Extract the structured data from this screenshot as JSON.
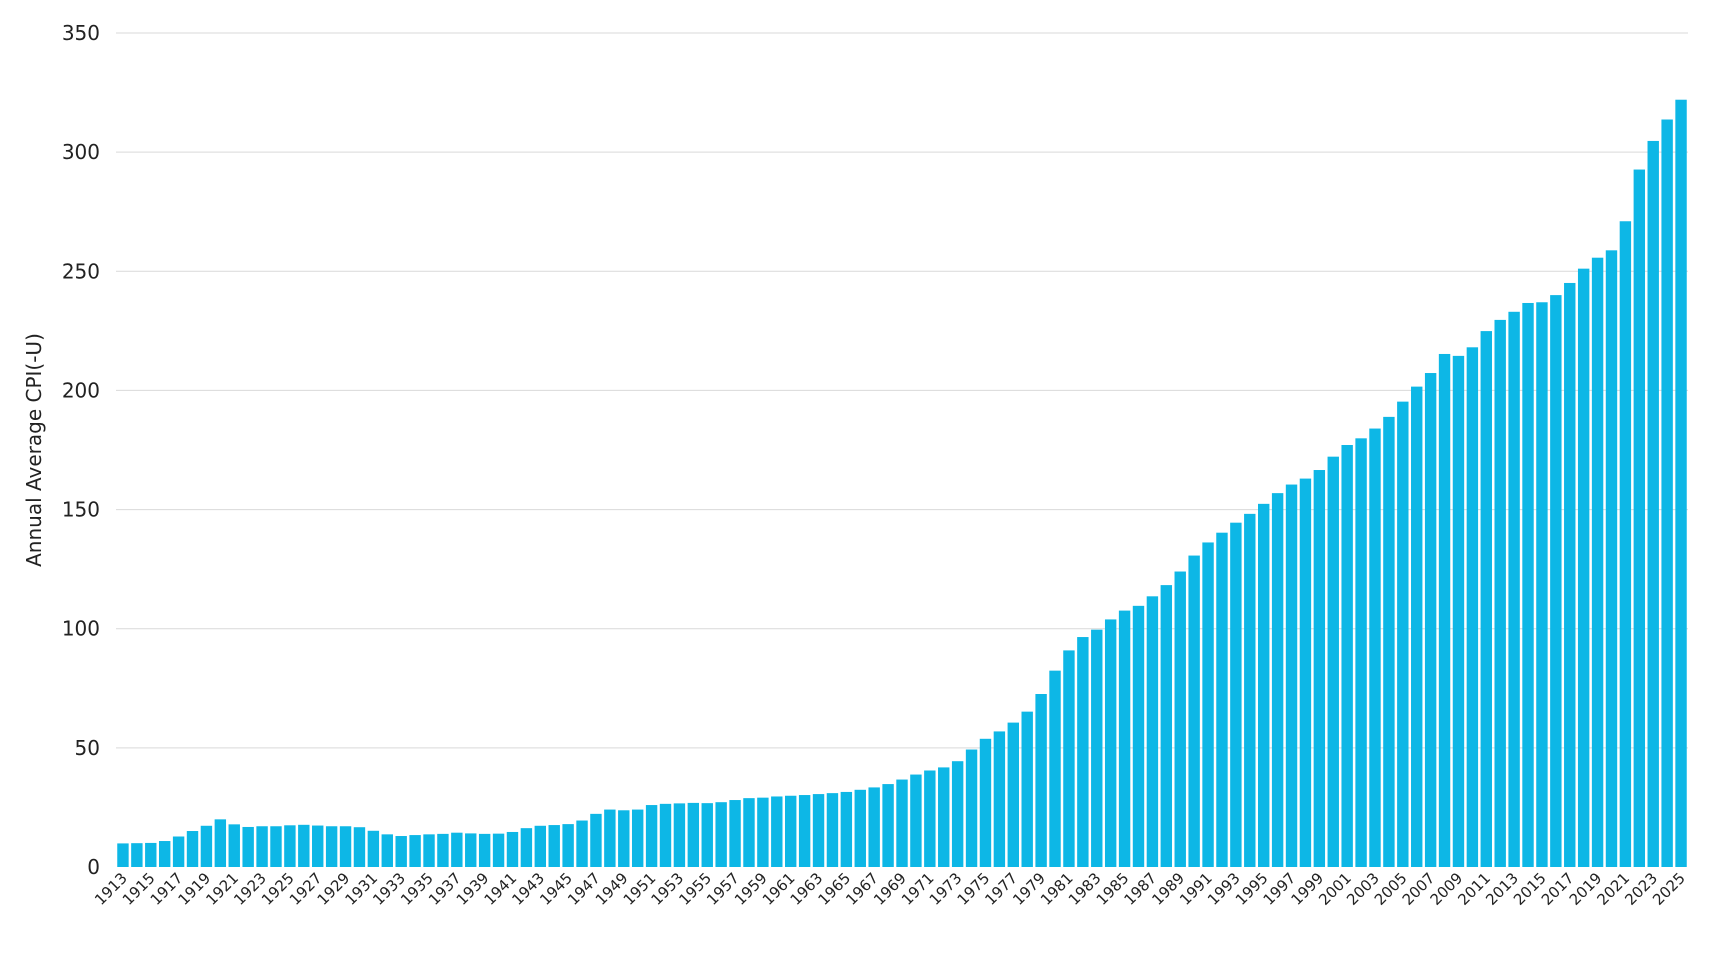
{
  "chart_data": {
    "type": "bar",
    "title": "",
    "xlabel": "",
    "ylabel": "Annual Average CPI(-U)",
    "ylim": [
      0,
      350
    ],
    "yticks": [
      0,
      50,
      100,
      150,
      200,
      250,
      300,
      350
    ],
    "grid": true,
    "bar_color": "#0db7e6",
    "grid_color": "#d9d9d9",
    "categories": [
      "1913",
      "1914",
      "1915",
      "1916",
      "1917",
      "1918",
      "1919",
      "1920",
      "1921",
      "1922",
      "1923",
      "1924",
      "1925",
      "1926",
      "1927",
      "1928",
      "1929",
      "1930",
      "1931",
      "1932",
      "1933",
      "1934",
      "1935",
      "1936",
      "1937",
      "1938",
      "1939",
      "1940",
      "1941",
      "1942",
      "1943",
      "1944",
      "1945",
      "1946",
      "1947",
      "1948",
      "1949",
      "1950",
      "1951",
      "1952",
      "1953",
      "1954",
      "1955",
      "1956",
      "1957",
      "1958",
      "1959",
      "1960",
      "1961",
      "1962",
      "1963",
      "1964",
      "1965",
      "1966",
      "1967",
      "1968",
      "1969",
      "1970",
      "1971",
      "1972",
      "1973",
      "1974",
      "1975",
      "1976",
      "1977",
      "1978",
      "1979",
      "1980",
      "1981",
      "1982",
      "1983",
      "1984",
      "1985",
      "1986",
      "1987",
      "1988",
      "1989",
      "1990",
      "1991",
      "1992",
      "1993",
      "1994",
      "1995",
      "1996",
      "1997",
      "1998",
      "1999",
      "2000",
      "2001",
      "2002",
      "2003",
      "2004",
      "2005",
      "2006",
      "2007",
      "2008",
      "2009",
      "2010",
      "2011",
      "2012",
      "2013",
      "2014",
      "2015",
      "2016",
      "2017",
      "2018",
      "2019",
      "2020",
      "2021",
      "2022",
      "2023",
      "2024",
      "2025"
    ],
    "xtick_labels": [
      "1913",
      "1915",
      "1917",
      "1919",
      "1921",
      "1923",
      "1925",
      "1927",
      "1929",
      "1931",
      "1933",
      "1935",
      "1937",
      "1939",
      "1941",
      "1943",
      "1945",
      "1947",
      "1949",
      "1951",
      "1953",
      "1955",
      "1957",
      "1959",
      "1961",
      "1963",
      "1965",
      "1967",
      "1969",
      "1971",
      "1973",
      "1975",
      "1977",
      "1979",
      "1981",
      "1983",
      "1985",
      "1987",
      "1989",
      "1991",
      "1993",
      "1995",
      "1997",
      "1999",
      "2001",
      "2003",
      "2005",
      "2007",
      "2009",
      "2011",
      "2013",
      "2015",
      "2017",
      "2019",
      "2021",
      "2023",
      "2025"
    ],
    "values": [
      9.9,
      10.0,
      10.1,
      10.9,
      12.8,
      15.1,
      17.3,
      20.0,
      17.9,
      16.8,
      17.1,
      17.1,
      17.5,
      17.7,
      17.4,
      17.1,
      17.1,
      16.7,
      15.2,
      13.7,
      13.0,
      13.4,
      13.7,
      13.9,
      14.4,
      14.1,
      13.9,
      14.0,
      14.7,
      16.3,
      17.3,
      17.6,
      18.0,
      19.5,
      22.3,
      24.1,
      23.8,
      24.1,
      26.0,
      26.5,
      26.7,
      26.9,
      26.8,
      27.2,
      28.1,
      28.9,
      29.1,
      29.6,
      29.9,
      30.2,
      30.6,
      31.0,
      31.5,
      32.4,
      33.4,
      34.8,
      36.7,
      38.8,
      40.5,
      41.8,
      44.4,
      49.3,
      53.8,
      56.9,
      60.6,
      65.2,
      72.6,
      82.4,
      90.9,
      96.5,
      99.6,
      103.9,
      107.6,
      109.6,
      113.6,
      118.3,
      124.0,
      130.7,
      136.2,
      140.3,
      144.5,
      148.2,
      152.4,
      156.9,
      160.5,
      163.0,
      166.6,
      172.2,
      177.1,
      179.9,
      184.0,
      188.9,
      195.3,
      201.6,
      207.3,
      215.3,
      214.5,
      218.1,
      224.9,
      229.6,
      233.0,
      236.7,
      237.0,
      240.0,
      245.1,
      251.1,
      255.7,
      258.8,
      271.0,
      292.7,
      304.7,
      313.7,
      322.0
    ]
  }
}
